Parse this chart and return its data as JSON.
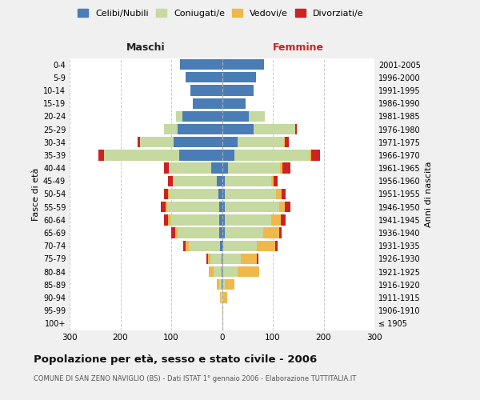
{
  "age_groups": [
    "100+",
    "95-99",
    "90-94",
    "85-89",
    "80-84",
    "75-79",
    "70-74",
    "65-69",
    "60-64",
    "55-59",
    "50-54",
    "45-49",
    "40-44",
    "35-39",
    "30-34",
    "25-29",
    "20-24",
    "15-19",
    "10-14",
    "5-9",
    "0-4"
  ],
  "birth_years": [
    "≤ 1905",
    "1906-1910",
    "1911-1915",
    "1916-1920",
    "1921-1925",
    "1926-1930",
    "1931-1935",
    "1936-1940",
    "1941-1945",
    "1946-1950",
    "1951-1955",
    "1956-1960",
    "1961-1965",
    "1966-1970",
    "1971-1975",
    "1976-1980",
    "1981-1985",
    "1986-1990",
    "1991-1995",
    "1996-2000",
    "2001-2005"
  ],
  "males_celibi": [
    0,
    0,
    0,
    1,
    1,
    1,
    4,
    5,
    5,
    6,
    7,
    10,
    22,
    85,
    95,
    88,
    78,
    58,
    62,
    72,
    82
  ],
  "males_coniugati": [
    0,
    0,
    2,
    5,
    15,
    22,
    62,
    82,
    96,
    102,
    97,
    87,
    82,
    148,
    66,
    26,
    12,
    0,
    0,
    0,
    0
  ],
  "males_vedovi": [
    0,
    0,
    2,
    5,
    10,
    5,
    5,
    5,
    5,
    3,
    2,
    0,
    0,
    0,
    0,
    0,
    0,
    0,
    0,
    0,
    0
  ],
  "males_divorziati": [
    0,
    0,
    0,
    0,
    0,
    2,
    5,
    8,
    8,
    10,
    8,
    9,
    10,
    10,
    5,
    0,
    0,
    0,
    0,
    0,
    0
  ],
  "females_nubili": [
    0,
    0,
    0,
    1,
    1,
    1,
    2,
    5,
    5,
    5,
    5,
    5,
    12,
    25,
    30,
    62,
    52,
    47,
    62,
    67,
    82
  ],
  "females_coniugate": [
    0,
    0,
    2,
    5,
    30,
    36,
    66,
    76,
    92,
    107,
    102,
    92,
    102,
    148,
    92,
    82,
    32,
    0,
    0,
    0,
    0
  ],
  "females_vedove": [
    0,
    2,
    8,
    18,
    42,
    32,
    36,
    32,
    18,
    12,
    10,
    5,
    5,
    2,
    2,
    0,
    0,
    0,
    0,
    0,
    0
  ],
  "females_divorziate": [
    0,
    0,
    0,
    0,
    0,
    2,
    5,
    5,
    10,
    10,
    8,
    8,
    15,
    18,
    8,
    3,
    0,
    0,
    0,
    0,
    0
  ],
  "color_celibi": "#4a7db5",
  "color_coniugati": "#c5d9a0",
  "color_vedovi": "#f0b84a",
  "color_divorziati": "#cc2222",
  "xlim": 300,
  "xtick_positions": [
    -300,
    -200,
    -100,
    0,
    100,
    200,
    300
  ],
  "title": "Popolazione per età, sesso e stato civile - 2006",
  "subtitle": "COMUNE DI SAN ZENO NAVIGLIO (BS) - Dati ISTAT 1° gennaio 2006 - Elaborazione TUTTITALIA.IT",
  "ylabel_left": "Fasce di età",
  "ylabel_right": "Anni di nascita",
  "label_maschi": "Maschi",
  "label_femmine": "Femmine",
  "legend_labels": [
    "Celibi/Nubili",
    "Coniugati/e",
    "Vedovi/e",
    "Divorziati/e"
  ],
  "bg_color": "#f0f0f0",
  "plot_bg_color": "#ffffff"
}
